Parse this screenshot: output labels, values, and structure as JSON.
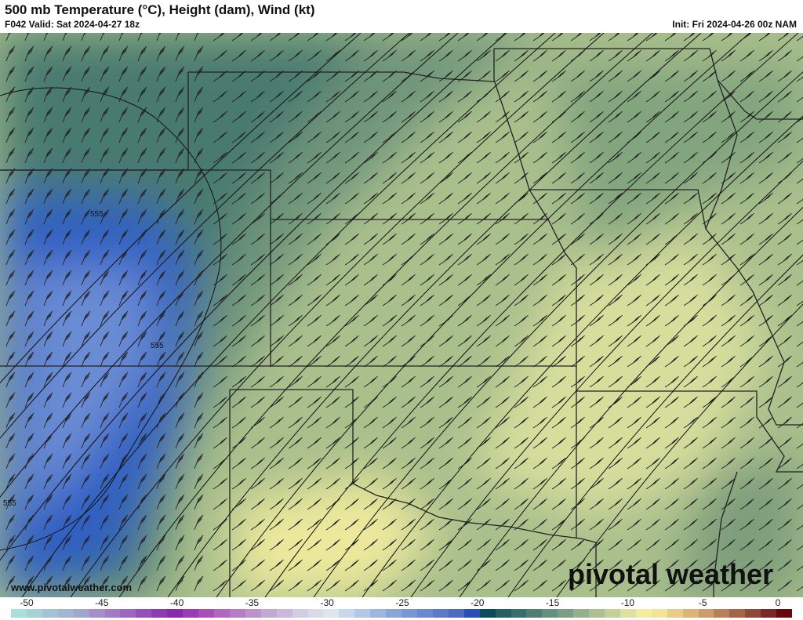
{
  "header": {
    "title": "500 mb Temperature (°C), Height (dam), Wind (kt)",
    "valid": "F042 Valid: Sat 2024-04-27 18z",
    "init": "Init: Fri 2024-04-26 00z NAM"
  },
  "map": {
    "contour_labels": [
      "555",
      "555",
      "555"
    ],
    "contour_color": "#111111",
    "border_color": "#222222"
  },
  "watermark": {
    "site": "www.pivotalweather.com",
    "logo": "pivotal weather"
  },
  "colorbar": {
    "unit": "°C",
    "labels": [
      "-50",
      "-45",
      "-40",
      "-35",
      "-30",
      "-25",
      "-20",
      "-15",
      "-10",
      "-5",
      "0"
    ],
    "colors": [
      "#a8e0d8",
      "#a5d2d6",
      "#a4c2d6",
      "#a3b5d3",
      "#a2a6cf",
      "#a390ca",
      "#a17cc4",
      "#9a68bf",
      "#9350b8",
      "#8c3cb2",
      "#8728ad",
      "#9a3cb4",
      "#a850b8",
      "#b266c0",
      "#b87cc6",
      "#bc92cc",
      "#c3a8d4",
      "#cab9dc",
      "#d2cce4",
      "#d8dce6",
      "#dde6ec",
      "#c8d8ea",
      "#b2c8e6",
      "#9cb6e0",
      "#88a6da",
      "#7896d4",
      "#6a88ce",
      "#5c78c8",
      "#4e6ac2",
      "#2a4eb8",
      "#0d4a5a",
      "#255e62",
      "#3a6e6a",
      "#507e74",
      "#66907e",
      "#7c9e84",
      "#94b08c",
      "#acc094",
      "#c4d09a",
      "#dce0a0",
      "#f2eca0",
      "#f2e29a",
      "#eacc8a",
      "#dcb47a",
      "#cc9c6c",
      "#b8805a",
      "#a4664a",
      "#8c4838",
      "#782828",
      "#640a10"
    ]
  }
}
